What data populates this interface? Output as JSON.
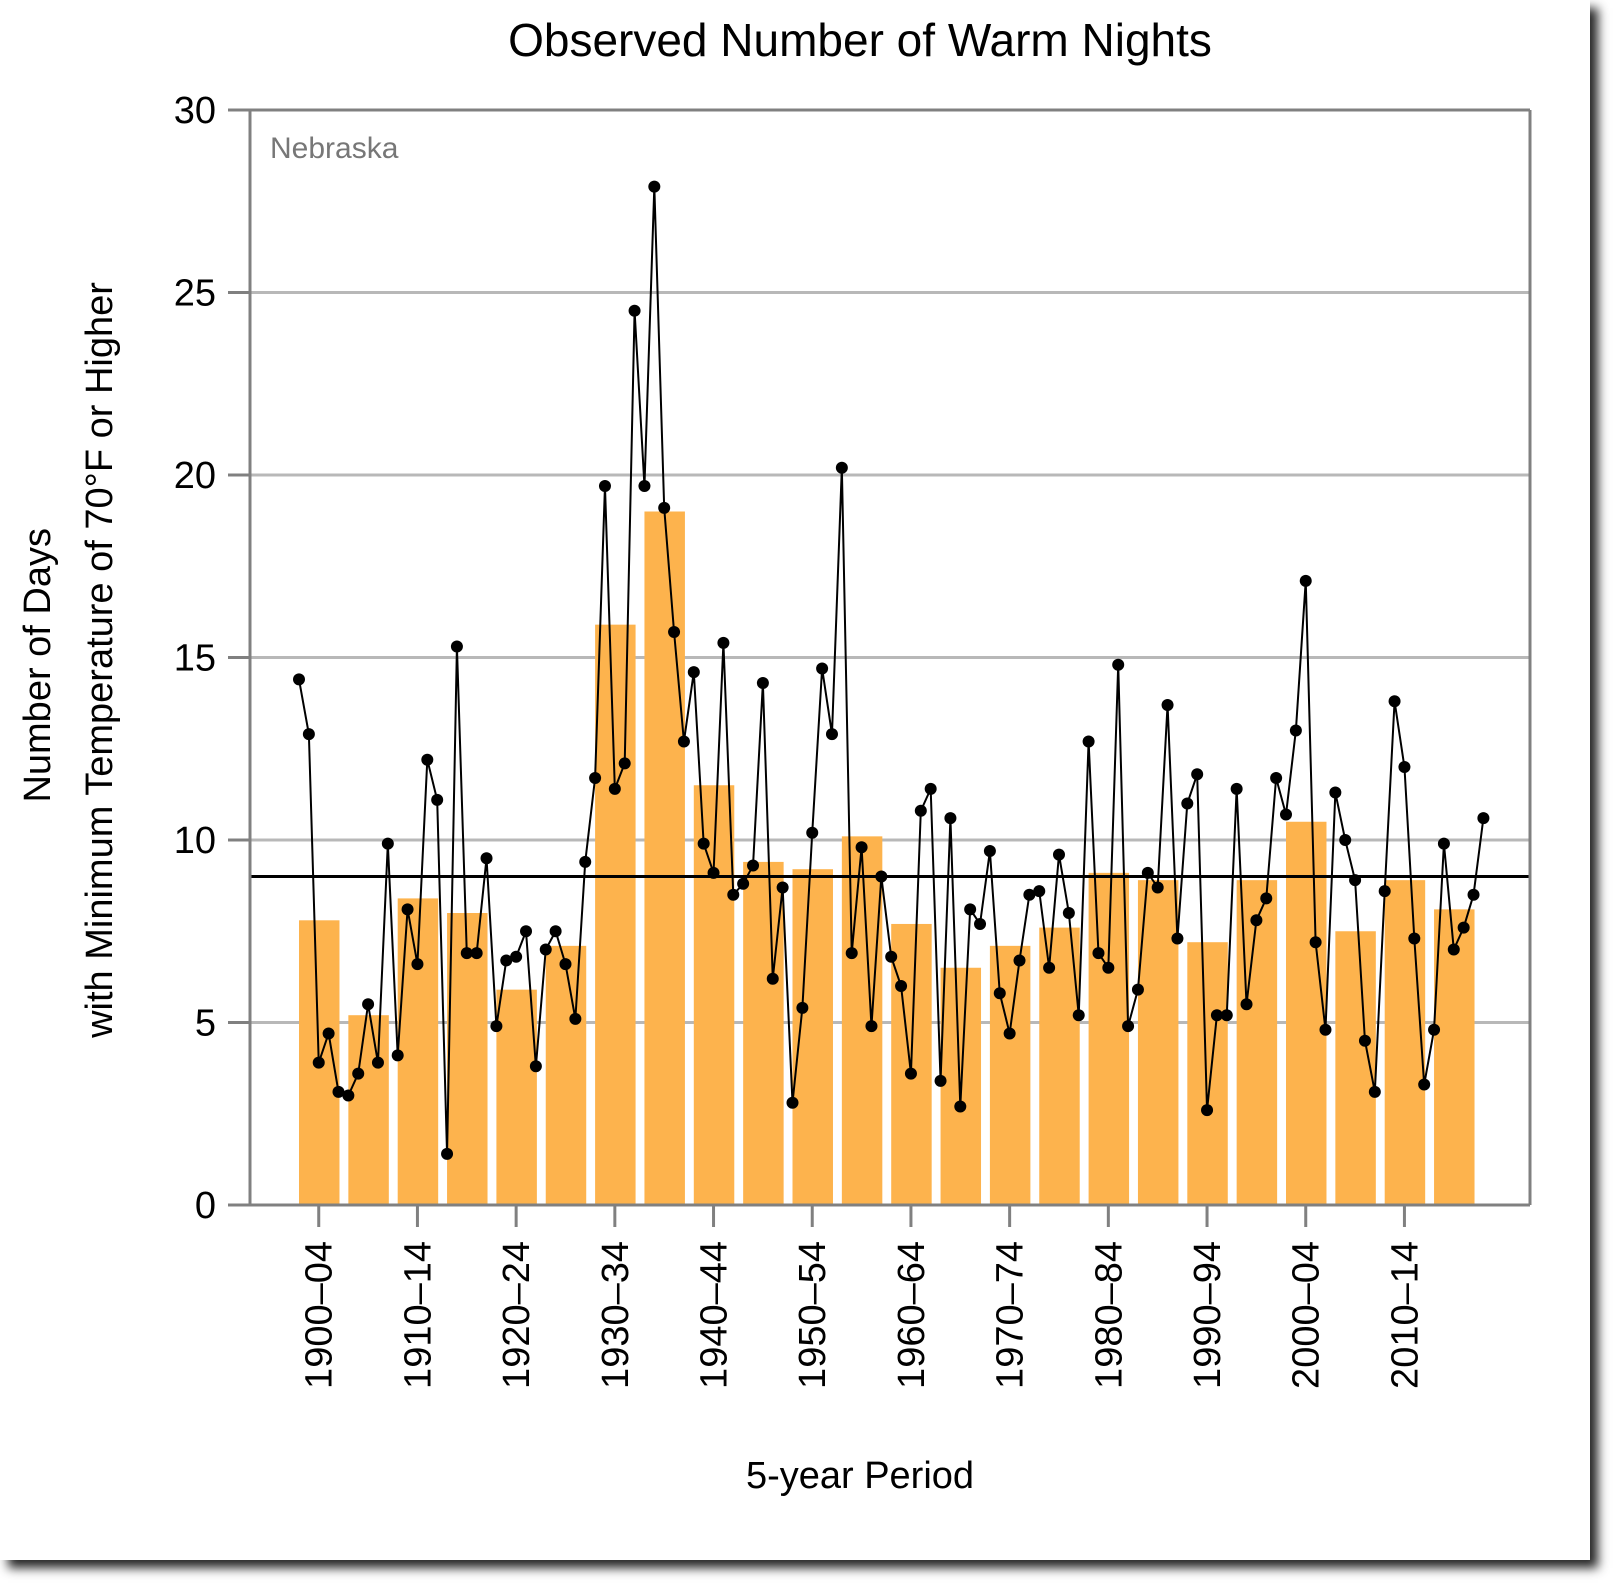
{
  "chart_data": {
    "type": "bar",
    "title": "Observed Number of Warm Nights",
    "xlabel": "5-year Period",
    "ylabel": "Number of Days\nwith Minimum Temperature of 70°F or Higher",
    "annotation": "Nebraska",
    "ylim": [
      0,
      30
    ],
    "yticks": [
      0,
      5,
      10,
      15,
      20,
      25,
      30
    ],
    "grid": true,
    "reference_line": 9.0,
    "x_tick_labels": [
      "1900–04",
      "1910–14",
      "1920–24",
      "1930–34",
      "1940–44",
      "1950–54",
      "1960–64",
      "1970–74",
      "1980–84",
      "1990–94",
      "2000–04",
      "2010–14"
    ],
    "bars": {
      "start_year": [
        1900,
        1905,
        1910,
        1915,
        1920,
        1925,
        1930,
        1935,
        1940,
        1945,
        1950,
        1955,
        1960,
        1965,
        1970,
        1975,
        1980,
        1985,
        1990,
        1995,
        2000,
        2005,
        2010,
        2015
      ],
      "values": [
        7.8,
        5.2,
        8.4,
        8.0,
        5.9,
        7.1,
        15.9,
        19.0,
        11.5,
        9.4,
        9.2,
        10.1,
        7.7,
        6.5,
        7.1,
        7.6,
        9.1,
        8.9,
        7.2,
        8.9,
        10.5,
        7.5,
        8.9,
        8.1
      ]
    },
    "annual": {
      "years": [
        1900,
        1901,
        1902,
        1903,
        1904,
        1905,
        1906,
        1907,
        1908,
        1909,
        1910,
        1911,
        1912,
        1913,
        1914,
        1915,
        1916,
        1917,
        1918,
        1919,
        1920,
        1921,
        1922,
        1923,
        1924,
        1925,
        1926,
        1927,
        1928,
        1929,
        1930,
        1931,
        1932,
        1933,
        1934,
        1935,
        1936,
        1937,
        1938,
        1939,
        1940,
        1941,
        1942,
        1943,
        1944,
        1945,
        1946,
        1947,
        1948,
        1949,
        1950,
        1951,
        1952,
        1953,
        1954,
        1955,
        1956,
        1957,
        1958,
        1959,
        1960,
        1961,
        1962,
        1963,
        1964,
        1965,
        1966,
        1967,
        1968,
        1969,
        1970,
        1971,
        1972,
        1973,
        1974,
        1975,
        1976,
        1977,
        1978,
        1979,
        1980,
        1981,
        1982,
        1983,
        1984,
        1985,
        1986,
        1987,
        1988,
        1989,
        1990,
        1991,
        1992,
        1993,
        1994,
        1995,
        1996,
        1997,
        1998,
        1999,
        2000,
        2001,
        2002,
        2003,
        2004,
        2005,
        2006,
        2007,
        2008,
        2009,
        2010,
        2011,
        2012,
        2013,
        2014,
        2015,
        2016,
        2017,
        2018,
        2019,
        2020
      ],
      "values": [
        14.4,
        12.9,
        3.9,
        4.7,
        3.1,
        3.0,
        3.6,
        5.5,
        3.9,
        9.9,
        4.1,
        8.1,
        6.6,
        12.2,
        11.1,
        1.4,
        15.3,
        6.9,
        6.9,
        9.5,
        4.9,
        6.7,
        6.8,
        7.5,
        3.8,
        7.0,
        7.5,
        6.6,
        5.1,
        9.4,
        11.7,
        19.7,
        11.4,
        12.1,
        24.5,
        19.7,
        27.9,
        19.1,
        15.7,
        12.7,
        14.6,
        9.9,
        9.1,
        15.4,
        8.5,
        8.8,
        9.3,
        14.3,
        6.2,
        8.7,
        2.8,
        5.4,
        10.2,
        14.7,
        12.9,
        20.2,
        6.9,
        9.8,
        4.9,
        9.0,
        6.8,
        6.0,
        3.6,
        10.8,
        11.4,
        3.4,
        10.6,
        2.7,
        8.1,
        7.7,
        9.7,
        5.8,
        4.7,
        6.7,
        8.5,
        8.6,
        6.5,
        9.6,
        8.0,
        5.2,
        12.7,
        6.9,
        6.5,
        14.8,
        4.9,
        5.9,
        9.1,
        8.7,
        13.7,
        7.3,
        11.0,
        11.8,
        2.6,
        5.2,
        5.2,
        11.4,
        5.5,
        7.8,
        8.4,
        11.7,
        10.7,
        13.0,
        17.1,
        7.2,
        4.8,
        11.3,
        10.0,
        8.9,
        4.5,
        3.1,
        8.6,
        13.8,
        12.0,
        7.3,
        3.3,
        4.8,
        9.9,
        7.0,
        7.6,
        8.5,
        10.6
      ]
    }
  },
  "colors": {
    "bar": "#FDB34D",
    "line": "#000000",
    "grid": "#B8B8B8",
    "axis": "#808080",
    "annotation": "#777777",
    "reference": "#000000"
  }
}
